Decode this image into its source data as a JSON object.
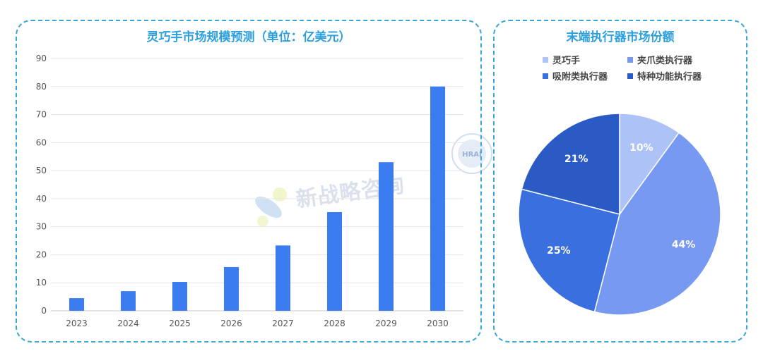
{
  "bar_chart": {
    "title": "灵巧手市场规模预测（单位：亿美元）",
    "accent_color": "#3b7cf0"
  },
  "pie_chart": {
    "title": "末端执行器市场份额"
  },
  "watermark": {
    "text": "新战略咨询",
    "seal_text": "HRAI"
  },
  "chart_data": [
    {
      "type": "bar",
      "title": "灵巧手市场规模预测（单位：亿美元）",
      "categories": [
        "2023",
        "2024",
        "2025",
        "2026",
        "2027",
        "2028",
        "2029",
        "2030"
      ],
      "values": [
        4.5,
        7,
        10.3,
        15.6,
        23.3,
        35.2,
        53,
        80
      ],
      "ylim": [
        0,
        90
      ],
      "yticks": [
        0,
        10,
        20,
        30,
        40,
        50,
        60,
        70,
        80,
        90
      ],
      "grid": true,
      "color": "#3b7cf0"
    },
    {
      "type": "pie",
      "title": "末端执行器市场份额",
      "legend_position": "top",
      "slices": [
        {
          "label": "灵巧手",
          "value": 10,
          "display": "10%",
          "color": "#adc3f7"
        },
        {
          "label": "夹爪类执行器",
          "value": 44,
          "display": "44%",
          "color": "#7899f2"
        },
        {
          "label": "吸附类执行器",
          "value": 25,
          "display": "25%",
          "color": "#3a6fe0"
        },
        {
          "label": "特种功能执行器",
          "value": 21,
          "display": "21%",
          "color": "#2a5bc4"
        }
      ]
    }
  ]
}
